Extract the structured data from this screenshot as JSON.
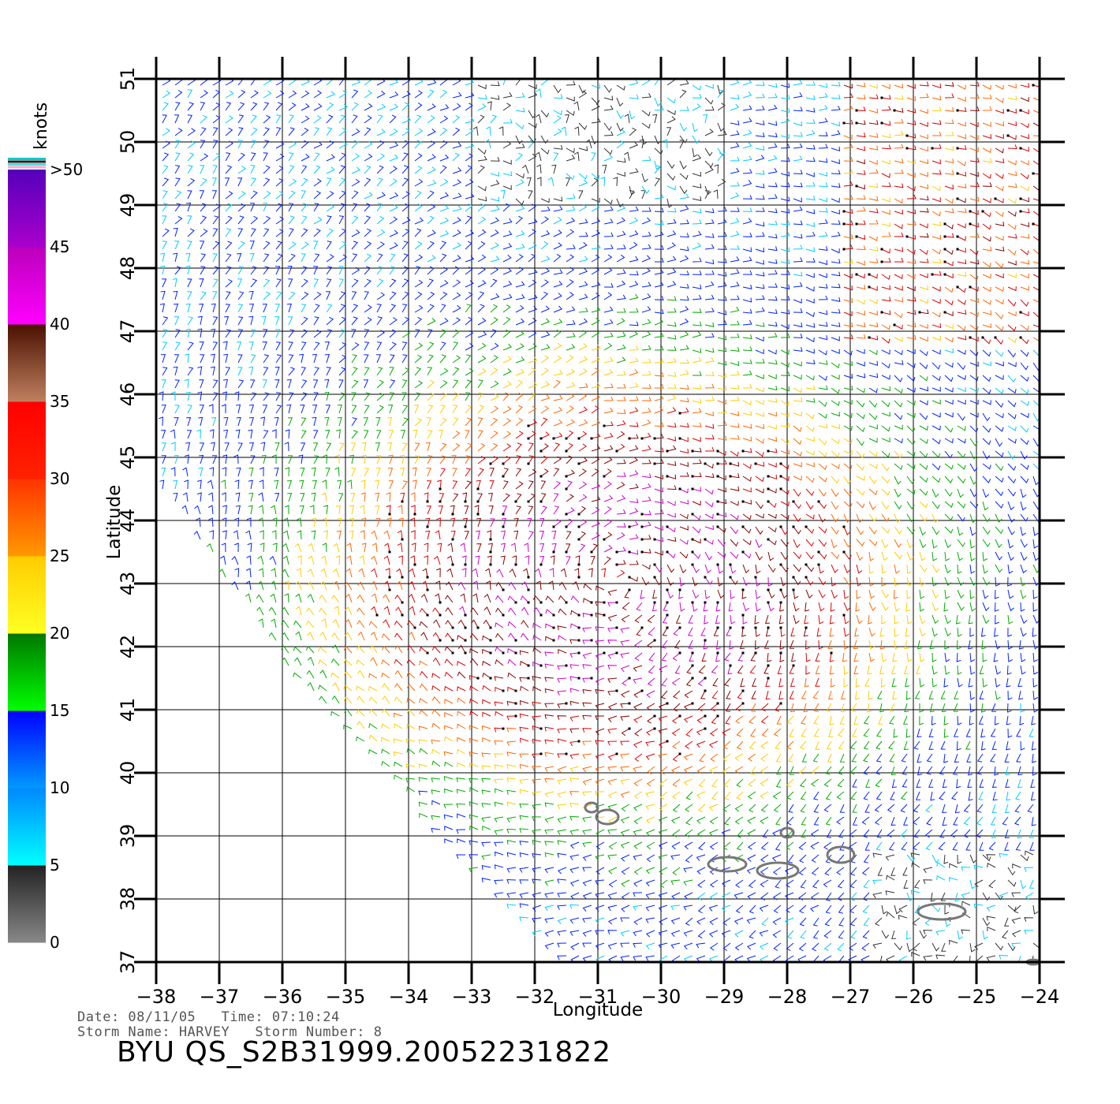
{
  "chart_data": {
    "type": "wind-barb-map",
    "xlabel": "Longitude",
    "ylabel": "Latitude",
    "xlim": [
      -38,
      -24
    ],
    "ylim": [
      37,
      51
    ],
    "xticks": [
      -38,
      -37,
      -36,
      -35,
      -34,
      -33,
      -32,
      -31,
      -30,
      -29,
      -28,
      -27,
      -26,
      -25,
      -24
    ],
    "yticks": [
      37,
      38,
      39,
      40,
      41,
      42,
      43,
      44,
      45,
      46,
      47,
      48,
      49,
      50,
      51
    ],
    "x_tick_labels": [
      "−38",
      "−37",
      "−36",
      "−35",
      "−34",
      "−33",
      "−32",
      "−31",
      "−30",
      "−29",
      "−28",
      "−27",
      "−26",
      "−25",
      "−24"
    ],
    "y_tick_labels": [
      "37",
      "38",
      "39",
      "40",
      "41",
      "42",
      "43",
      "44",
      "45",
      "46",
      "47",
      "48",
      "49",
      "50",
      "51"
    ],
    "grid": true,
    "storm_center": {
      "lon": -30.7,
      "lat": 43.0
    },
    "colorbar": {
      "unit_label": "knots",
      "tick_labels": [
        "0",
        "5",
        "10",
        "15",
        "20",
        "25",
        "30",
        "35",
        "40",
        "45",
        ">50"
      ],
      "bands": [
        {
          "range": [
            0,
            5
          ],
          "color_top": "#222222",
          "color_bottom": "#888888"
        },
        {
          "range": [
            5,
            10
          ],
          "color_top": "#0088ff",
          "color_bottom": "#00ffff"
        },
        {
          "range": [
            10,
            15
          ],
          "color_top": "#0000ff",
          "color_bottom": "#0099ff"
        },
        {
          "range": [
            15,
            20
          ],
          "color_top": "#007700",
          "color_bottom": "#00ff00"
        },
        {
          "range": [
            20,
            25
          ],
          "color_top": "#ffcc00",
          "color_bottom": "#ffff22"
        },
        {
          "range": [
            25,
            30
          ],
          "color_top": "#ff3300",
          "color_bottom": "#ff9900"
        },
        {
          "range": [
            30,
            35
          ],
          "color_top": "#ff0000",
          "color_bottom": "#ff2200"
        },
        {
          "range": [
            35,
            40
          ],
          "color_top": "#4a1000",
          "color_bottom": "#c08060"
        },
        {
          "range": [
            40,
            45
          ],
          "color_top": "#bb00bb",
          "color_bottom": "#ff00ff"
        },
        {
          "range": [
            45,
            50
          ],
          "color_top": "#5500bb",
          "color_bottom": "#aa00cc"
        }
      ],
      "extra_line_colors": [
        "#00cccc",
        "#222222",
        "#55dddd",
        "#ffaacc"
      ]
    },
    "speed_colors": {
      "0-5": "#333333",
      "5-10": "#00ccff",
      "10-15": "#0022ff",
      "15-20": "#00aa00",
      "20-25": "#ffcc00",
      "25-30": "#ff6600",
      "30-35": "#dd0000",
      "35-40": "#8b0000",
      "40+": "#cc00cc"
    },
    "islands": [
      {
        "lon": -30.85,
        "lat": 39.3
      },
      {
        "lon": -31.1,
        "lat": 39.45
      },
      {
        "lon": -28.95,
        "lat": 38.55
      },
      {
        "lon": -28.15,
        "lat": 38.45
      },
      {
        "lon": -27.15,
        "lat": 38.7
      },
      {
        "lon": -25.55,
        "lat": 37.8
      },
      {
        "lon": -28.0,
        "lat": 39.05
      },
      {
        "lon": -24.1,
        "lat": 37.0
      }
    ]
  },
  "footer": {
    "date_line": "Date: 08/11/05   Time: 07:10:24",
    "storm_line": "Storm Name: HARVEY   Storm Number: 8",
    "title": "BYU QS_S2B31999.20052231822"
  }
}
